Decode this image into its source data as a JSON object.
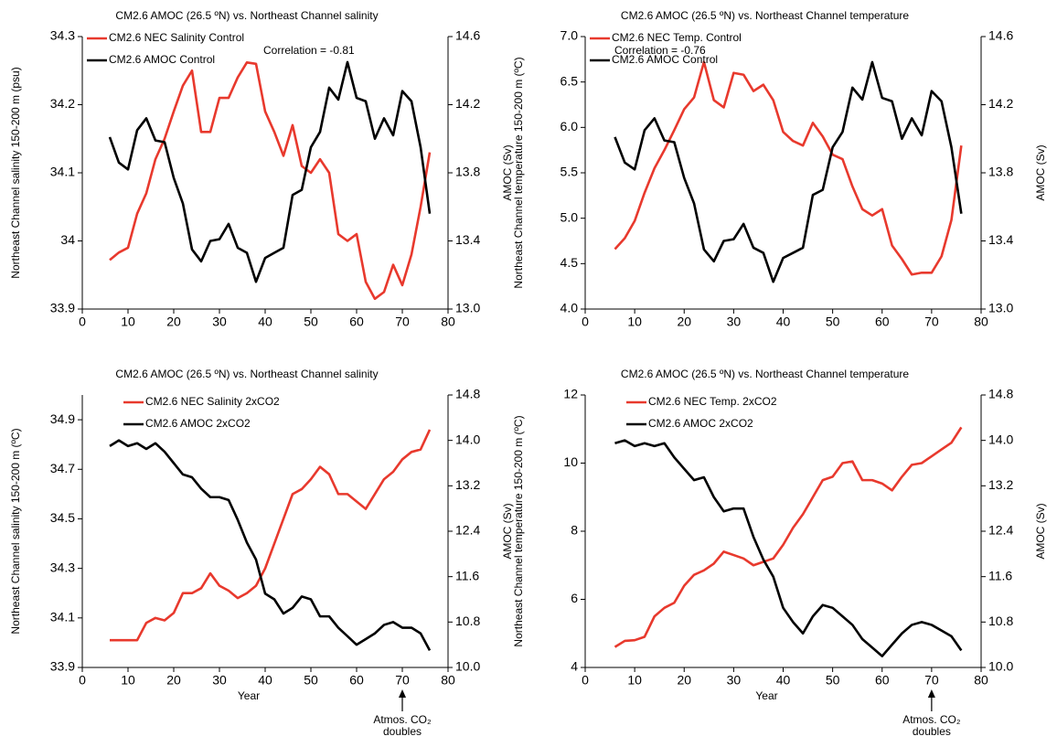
{
  "chart_data": [
    {
      "type": "line",
      "title": "CM2.6 AMOC (26.5 ºN) vs. Northeast Channel salinity",
      "ylabel": "Northeast Channel salinity 150-200 m (psu)",
      "y2label": "AMOC  (Sv)",
      "annotation": "Correlation = -0.81",
      "legend": "top-left",
      "x": [
        6,
        8,
        10,
        12,
        14,
        16,
        18,
        20,
        22,
        24,
        26,
        28,
        30,
        32,
        34,
        36,
        38,
        40,
        42,
        44,
        46,
        48,
        50,
        52,
        54,
        56,
        58,
        60,
        62,
        64,
        66,
        68,
        70,
        72,
        74,
        76
      ],
      "xlim": [
        0,
        80
      ],
      "xticks": [
        0,
        10,
        20,
        30,
        40,
        50,
        60,
        70,
        80
      ],
      "ylim": [
        33.9,
        34.3
      ],
      "yticks": [
        33.9,
        34.0,
        34.1,
        34.2,
        34.3
      ],
      "y2lim": [
        13.0,
        14.6
      ],
      "y2ticks": [
        {
          "value": 13,
          "label": "13.0"
        },
        13.4,
        13.8,
        14.2,
        14.6
      ],
      "series": [
        {
          "name": "CM2.6 NEC Salinity Control",
          "color": "#e8392d",
          "values": [
            33.972,
            33.983,
            33.99,
            34.04,
            34.07,
            34.12,
            34.15,
            34.19,
            34.228,
            34.25,
            34.16,
            34.16,
            34.21,
            34.21,
            34.24,
            34.262,
            34.26,
            34.19,
            34.16,
            34.125,
            34.17,
            34.11,
            34.1,
            34.12,
            34.1,
            34.01,
            34.0,
            34.01,
            33.94,
            33.915,
            33.925,
            33.965,
            33.935,
            33.98,
            34.05,
            34.13
          ]
        },
        {
          "name": "CM2.6 AMOC Control",
          "color": "#000000",
          "axis": "y2",
          "values": [
            14.01,
            13.86,
            13.82,
            14.05,
            14.12,
            13.99,
            13.98,
            13.77,
            13.62,
            13.35,
            13.28,
            13.4,
            13.41,
            13.5,
            13.36,
            13.33,
            13.16,
            13.3,
            13.33,
            13.36,
            13.67,
            13.7,
            13.95,
            14.04,
            14.3,
            14.23,
            14.45,
            14.24,
            14.22,
            14.0,
            14.12,
            14.02,
            14.28,
            14.22,
            13.95,
            13.56
          ]
        }
      ]
    },
    {
      "type": "line",
      "title": "CM2.6 AMOC (26.5 ºN) vs. Northeast Channel temperature",
      "ylabel": "Northeast Channel temperature 150-200 m (ºC)",
      "y2label": "AMOC  (Sv)",
      "annotation": "Correlation = -0.76",
      "legend": "top-left",
      "x": [
        6,
        8,
        10,
        12,
        14,
        16,
        18,
        20,
        22,
        24,
        26,
        28,
        30,
        32,
        34,
        36,
        38,
        40,
        42,
        44,
        46,
        48,
        50,
        52,
        54,
        56,
        58,
        60,
        62,
        64,
        66,
        68,
        70,
        72,
        74,
        76
      ],
      "xlim": [
        0,
        80
      ],
      "xticks": [
        0,
        10,
        20,
        30,
        40,
        50,
        60,
        70,
        80
      ],
      "ylim": [
        4,
        7
      ],
      "yticks": [
        {
          "value": 4,
          "label": "4.0"
        },
        4.5,
        {
          "value": 5,
          "label": "5.0"
        },
        5.5,
        {
          "value": 6,
          "label": "6.0"
        },
        6.5,
        {
          "value": 7,
          "label": "7.0"
        }
      ],
      "y2lim": [
        13.0,
        14.6
      ],
      "y2ticks": [
        {
          "value": 13,
          "label": "13.0"
        },
        13.4,
        13.8,
        14.2,
        14.6
      ],
      "series": [
        {
          "name": "CM2.6 NEC Temp. Control",
          "color": "#e8392d",
          "values": [
            4.66,
            4.78,
            4.97,
            5.28,
            5.55,
            5.75,
            5.97,
            6.2,
            6.33,
            6.72,
            6.3,
            6.22,
            6.6,
            6.58,
            6.4,
            6.47,
            6.3,
            5.95,
            5.85,
            5.8,
            6.05,
            5.9,
            5.7,
            5.65,
            5.35,
            5.1,
            5.03,
            5.1,
            4.7,
            4.55,
            4.38,
            4.4,
            4.4,
            4.58,
            4.98,
            5.8
          ]
        },
        {
          "name": "CM2.6 AMOC Control",
          "color": "#000000",
          "axis": "y2",
          "values": [
            14.01,
            13.86,
            13.82,
            14.05,
            14.12,
            13.99,
            13.98,
            13.77,
            13.62,
            13.35,
            13.28,
            13.4,
            13.41,
            13.5,
            13.36,
            13.33,
            13.16,
            13.3,
            13.33,
            13.36,
            13.67,
            13.7,
            13.95,
            14.04,
            14.3,
            14.23,
            14.45,
            14.24,
            14.22,
            14.0,
            14.12,
            14.02,
            14.28,
            14.22,
            13.95,
            13.56
          ]
        }
      ]
    },
    {
      "type": "line",
      "title": "CM2.6 AMOC (26.5 ºN) vs. Northeast Channel salinity",
      "ylabel": "Northeast Channel salinity 150-200 m (ºC)",
      "y2label": "AMOC  (Sv)",
      "xlabel": "Year",
      "note": [
        "Atmos. CO₂",
        "doubles"
      ],
      "arrow_x": 70,
      "legend": "top-left",
      "x": [
        6,
        8,
        10,
        12,
        14,
        16,
        18,
        20,
        22,
        24,
        26,
        28,
        30,
        32,
        34,
        36,
        38,
        40,
        42,
        44,
        46,
        48,
        50,
        52,
        54,
        56,
        58,
        60,
        62,
        64,
        66,
        68,
        70,
        72,
        74,
        76
      ],
      "xlim": [
        0,
        80
      ],
      "xticks": [
        0,
        10,
        20,
        30,
        40,
        50,
        60,
        70,
        80
      ],
      "ylim": [
        33.9,
        35.0
      ],
      "yticks": [
        33.9,
        34.1,
        34.3,
        34.5,
        34.7,
        34.9
      ],
      "y2lim": [
        10.0,
        14.8
      ],
      "y2ticks": [
        {
          "value": 10,
          "label": "10.0"
        },
        10.8,
        11.6,
        12.4,
        13.2,
        {
          "value": 14,
          "label": "14.0"
        },
        14.8
      ],
      "series": [
        {
          "name": "CM2.6 NEC Salinity 2xCO2",
          "color": "#e8392d",
          "values": [
            34.01,
            34.01,
            34.01,
            34.01,
            34.08,
            34.1,
            34.09,
            34.12,
            34.2,
            34.2,
            34.22,
            34.28,
            34.23,
            34.21,
            34.18,
            34.2,
            34.23,
            34.3,
            34.4,
            34.5,
            34.6,
            34.62,
            34.66,
            34.71,
            34.68,
            34.6,
            34.6,
            34.57,
            34.54,
            34.6,
            34.66,
            34.69,
            34.74,
            34.77,
            34.78,
            34.86
          ]
        },
        {
          "name": "CM2.6 AMOC 2xCO2",
          "color": "#000000",
          "axis": "y2",
          "values": [
            13.9,
            14.0,
            13.9,
            13.95,
            13.85,
            13.95,
            13.8,
            13.6,
            13.4,
            13.35,
            13.15,
            13.0,
            13.0,
            12.95,
            12.6,
            12.2,
            11.9,
            11.3,
            11.2,
            10.95,
            11.05,
            11.25,
            11.2,
            10.9,
            10.9,
            10.7,
            10.55,
            10.4,
            10.5,
            10.6,
            10.75,
            10.8,
            10.7,
            10.7,
            10.6,
            10.3
          ]
        }
      ]
    },
    {
      "type": "line",
      "title": "CM2.6 AMOC (26.5 ºN) vs. Northeast Channel temperature",
      "ylabel": "Northeast Channel temperature 150-200 m (ºC)",
      "y2label": "AMOC  (Sv)",
      "xlabel": "Year",
      "note": [
        "Atmos. CO₂",
        "doubles"
      ],
      "arrow_x": 70,
      "legend": "top-left",
      "x": [
        6,
        8,
        10,
        12,
        14,
        16,
        18,
        20,
        22,
        24,
        26,
        28,
        30,
        32,
        34,
        36,
        38,
        40,
        42,
        44,
        46,
        48,
        50,
        52,
        54,
        56,
        58,
        60,
        62,
        64,
        66,
        68,
        70,
        72,
        74,
        76
      ],
      "xlim": [
        0,
        80
      ],
      "xticks": [
        0,
        10,
        20,
        30,
        40,
        50,
        60,
        70,
        80
      ],
      "ylim": [
        4,
        12
      ],
      "yticks": [
        4,
        6,
        8,
        10,
        12
      ],
      "y2lim": [
        10.0,
        14.8
      ],
      "y2ticks": [
        {
          "value": 10,
          "label": "10.0"
        },
        10.8,
        11.6,
        12.4,
        13.2,
        {
          "value": 14,
          "label": "14.0"
        },
        14.8
      ],
      "series": [
        {
          "name": "CM2.6 NEC Temp. 2xCO2",
          "color": "#e8392d",
          "values": [
            4.6,
            4.78,
            4.8,
            4.9,
            5.5,
            5.75,
            5.9,
            6.4,
            6.72,
            6.85,
            7.05,
            7.4,
            7.3,
            7.2,
            7.0,
            7.1,
            7.2,
            7.6,
            8.1,
            8.5,
            9.0,
            9.5,
            9.6,
            10.0,
            10.05,
            9.5,
            9.5,
            9.4,
            9.2,
            9.6,
            9.95,
            10.0,
            10.2,
            10.4,
            10.6,
            11.05
          ]
        },
        {
          "name": "CM2.6 AMOC 2xCO2",
          "color": "#000000",
          "axis": "y2",
          "values": [
            13.95,
            14.0,
            13.9,
            13.95,
            13.9,
            13.95,
            13.7,
            13.5,
            13.3,
            13.35,
            13.0,
            12.75,
            12.8,
            12.8,
            12.3,
            11.9,
            11.6,
            11.05,
            10.8,
            10.6,
            10.9,
            11.1,
            11.05,
            10.9,
            10.75,
            10.5,
            10.35,
            10.2,
            10.4,
            10.6,
            10.75,
            10.8,
            10.75,
            10.65,
            10.55,
            10.3
          ]
        }
      ]
    }
  ]
}
